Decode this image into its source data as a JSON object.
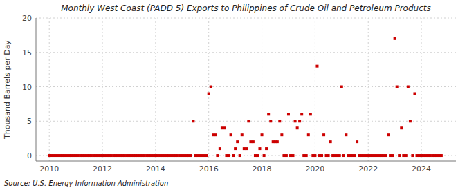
{
  "chart_data": {
    "type": "scatter",
    "title": "Monthly West Coast (PADD 5) Exports to Philippines of Crude Oil and Petroleum Products",
    "y_label": "Thousand Barrels per Day",
    "source": "Source: U.S. Energy Information Administration",
    "xlim": [
      2009.5,
      2025.3
    ],
    "ylim": [
      -0.8,
      20
    ],
    "xticks": [
      2010,
      2012,
      2014,
      2016,
      2018,
      2020,
      2022,
      2024
    ],
    "yticks": [
      0,
      5,
      10,
      15,
      20
    ],
    "grid": true,
    "color": "#cc0000",
    "marker": "square",
    "x": [
      2010.0,
      2010.08,
      2010.17,
      2010.25,
      2010.33,
      2010.42,
      2010.5,
      2010.58,
      2010.67,
      2010.75,
      2010.83,
      2010.92,
      2011.0,
      2011.08,
      2011.17,
      2011.25,
      2011.33,
      2011.42,
      2011.5,
      2011.58,
      2011.67,
      2011.75,
      2011.83,
      2011.92,
      2012.0,
      2012.08,
      2012.17,
      2012.25,
      2012.33,
      2012.42,
      2012.5,
      2012.58,
      2012.67,
      2012.75,
      2012.83,
      2012.92,
      2013.0,
      2013.08,
      2013.17,
      2013.25,
      2013.33,
      2013.42,
      2013.5,
      2013.58,
      2013.67,
      2013.75,
      2013.83,
      2013.92,
      2014.0,
      2014.08,
      2014.17,
      2014.25,
      2014.33,
      2014.42,
      2014.5,
      2014.58,
      2014.67,
      2014.75,
      2014.83,
      2014.92,
      2015.0,
      2015.08,
      2015.17,
      2015.25,
      2015.33,
      2015.42,
      2015.5,
      2015.58,
      2015.67,
      2015.75,
      2015.83,
      2015.92,
      2016.0,
      2016.08,
      2016.17,
      2016.25,
      2016.33,
      2016.42,
      2016.5,
      2016.58,
      2016.67,
      2016.75,
      2016.83,
      2016.92,
      2017.0,
      2017.08,
      2017.17,
      2017.25,
      2017.33,
      2017.42,
      2017.5,
      2017.58,
      2017.67,
      2017.75,
      2017.83,
      2017.92,
      2018.0,
      2018.08,
      2018.17,
      2018.25,
      2018.33,
      2018.42,
      2018.5,
      2018.58,
      2018.67,
      2018.75,
      2018.83,
      2018.92,
      2019.0,
      2019.08,
      2019.17,
      2019.25,
      2019.33,
      2019.42,
      2019.5,
      2019.58,
      2019.67,
      2019.75,
      2019.83,
      2019.92,
      2020.0,
      2020.08,
      2020.17,
      2020.25,
      2020.33,
      2020.42,
      2020.5,
      2020.58,
      2020.67,
      2020.75,
      2020.83,
      2020.92,
      2021.0,
      2021.08,
      2021.17,
      2021.25,
      2021.33,
      2021.42,
      2021.5,
      2021.58,
      2021.67,
      2021.75,
      2021.83,
      2021.92,
      2022.0,
      2022.08,
      2022.17,
      2022.25,
      2022.33,
      2022.42,
      2022.5,
      2022.58,
      2022.67,
      2022.75,
      2022.83,
      2022.92,
      2023.0,
      2023.08,
      2023.17,
      2023.25,
      2023.33,
      2023.42,
      2023.5,
      2023.58,
      2023.67,
      2023.75,
      2023.83,
      2023.92,
      2024.0,
      2024.08,
      2024.17,
      2024.25,
      2024.33,
      2024.42,
      2024.5,
      2024.58,
      2024.67,
      2024.75
    ],
    "values": [
      0,
      0,
      0,
      0,
      0,
      0,
      0,
      0,
      0,
      0,
      0,
      0,
      0,
      0,
      0,
      0,
      0,
      0,
      0,
      0,
      0,
      0,
      0,
      0,
      0,
      0,
      0,
      0,
      0,
      0,
      0,
      0,
      0,
      0,
      0,
      0,
      0,
      0,
      0,
      0,
      0,
      0,
      0,
      0,
      0,
      0,
      0,
      0,
      0,
      0,
      0,
      0,
      0,
      0,
      0,
      0,
      0,
      0,
      0,
      0,
      0,
      0,
      0,
      0,
      0,
      5,
      0,
      0,
      0,
      0,
      0,
      0,
      9,
      10,
      3,
      3,
      0,
      1,
      4,
      4,
      0,
      0,
      3,
      0,
      1,
      2,
      0,
      3,
      1,
      1,
      5,
      2,
      2,
      0,
      0,
      1,
      3,
      0,
      1,
      6,
      5,
      2,
      2,
      2,
      5,
      3,
      0,
      0,
      6,
      0,
      0,
      5,
      4,
      5,
      6,
      0,
      0,
      3,
      6,
      0,
      0,
      13,
      0,
      0,
      3,
      0,
      0,
      2,
      0,
      0,
      0,
      0,
      10,
      0,
      3,
      0,
      0,
      0,
      0,
      2,
      0,
      0,
      0,
      0,
      0,
      0,
      0,
      0,
      0,
      0,
      0,
      0,
      0,
      3,
      0,
      0,
      17,
      10,
      0,
      4,
      0,
      0,
      10,
      5,
      0,
      9,
      0,
      0,
      0,
      0,
      0,
      0,
      0,
      0,
      0,
      0,
      0,
      0
    ]
  }
}
